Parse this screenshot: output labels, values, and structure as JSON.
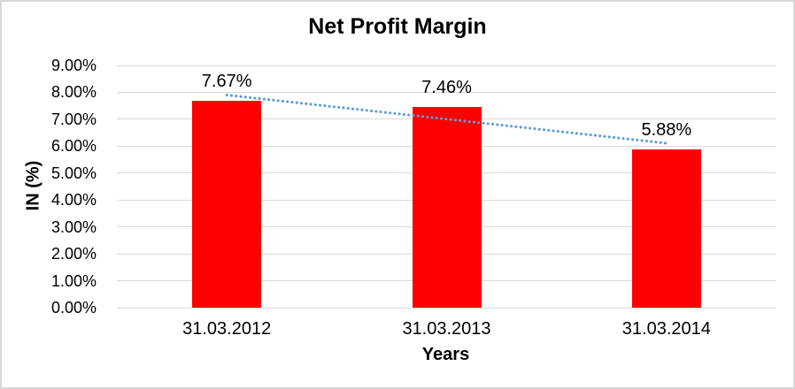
{
  "window": {
    "background": "#FFFFFF",
    "border_color": "#D8D8D8"
  },
  "chart_data": {
    "type": "bar",
    "title": "Net Profit Margin",
    "xlabel": "Years",
    "ylabel": "IN (%)",
    "categories": [
      "31.03.2012",
      "31.03.2013",
      "31.03.2014"
    ],
    "series": [
      {
        "name": "Net Profit Margin",
        "values": [
          7.67,
          7.46,
          5.88
        ]
      }
    ],
    "bar_labels": [
      "7.67%",
      "7.46%",
      "5.88%"
    ],
    "ylim": [
      0,
      9
    ],
    "ytick_step": 1,
    "ytick_labels": [
      "0.00%",
      "1.00%",
      "2.00%",
      "3.00%",
      "4.00%",
      "5.00%",
      "6.00%",
      "7.00%",
      "8.00%",
      "9.00%"
    ],
    "grid": "horizontal",
    "legend": "none",
    "trendline": {
      "style": "dotted",
      "start_value": 7.9,
      "end_value": 6.11
    },
    "colors": {
      "bar": "#FF0000",
      "trendline": "#5B9BD5",
      "gridline": "#D9D9D9",
      "text": "#000000"
    }
  }
}
